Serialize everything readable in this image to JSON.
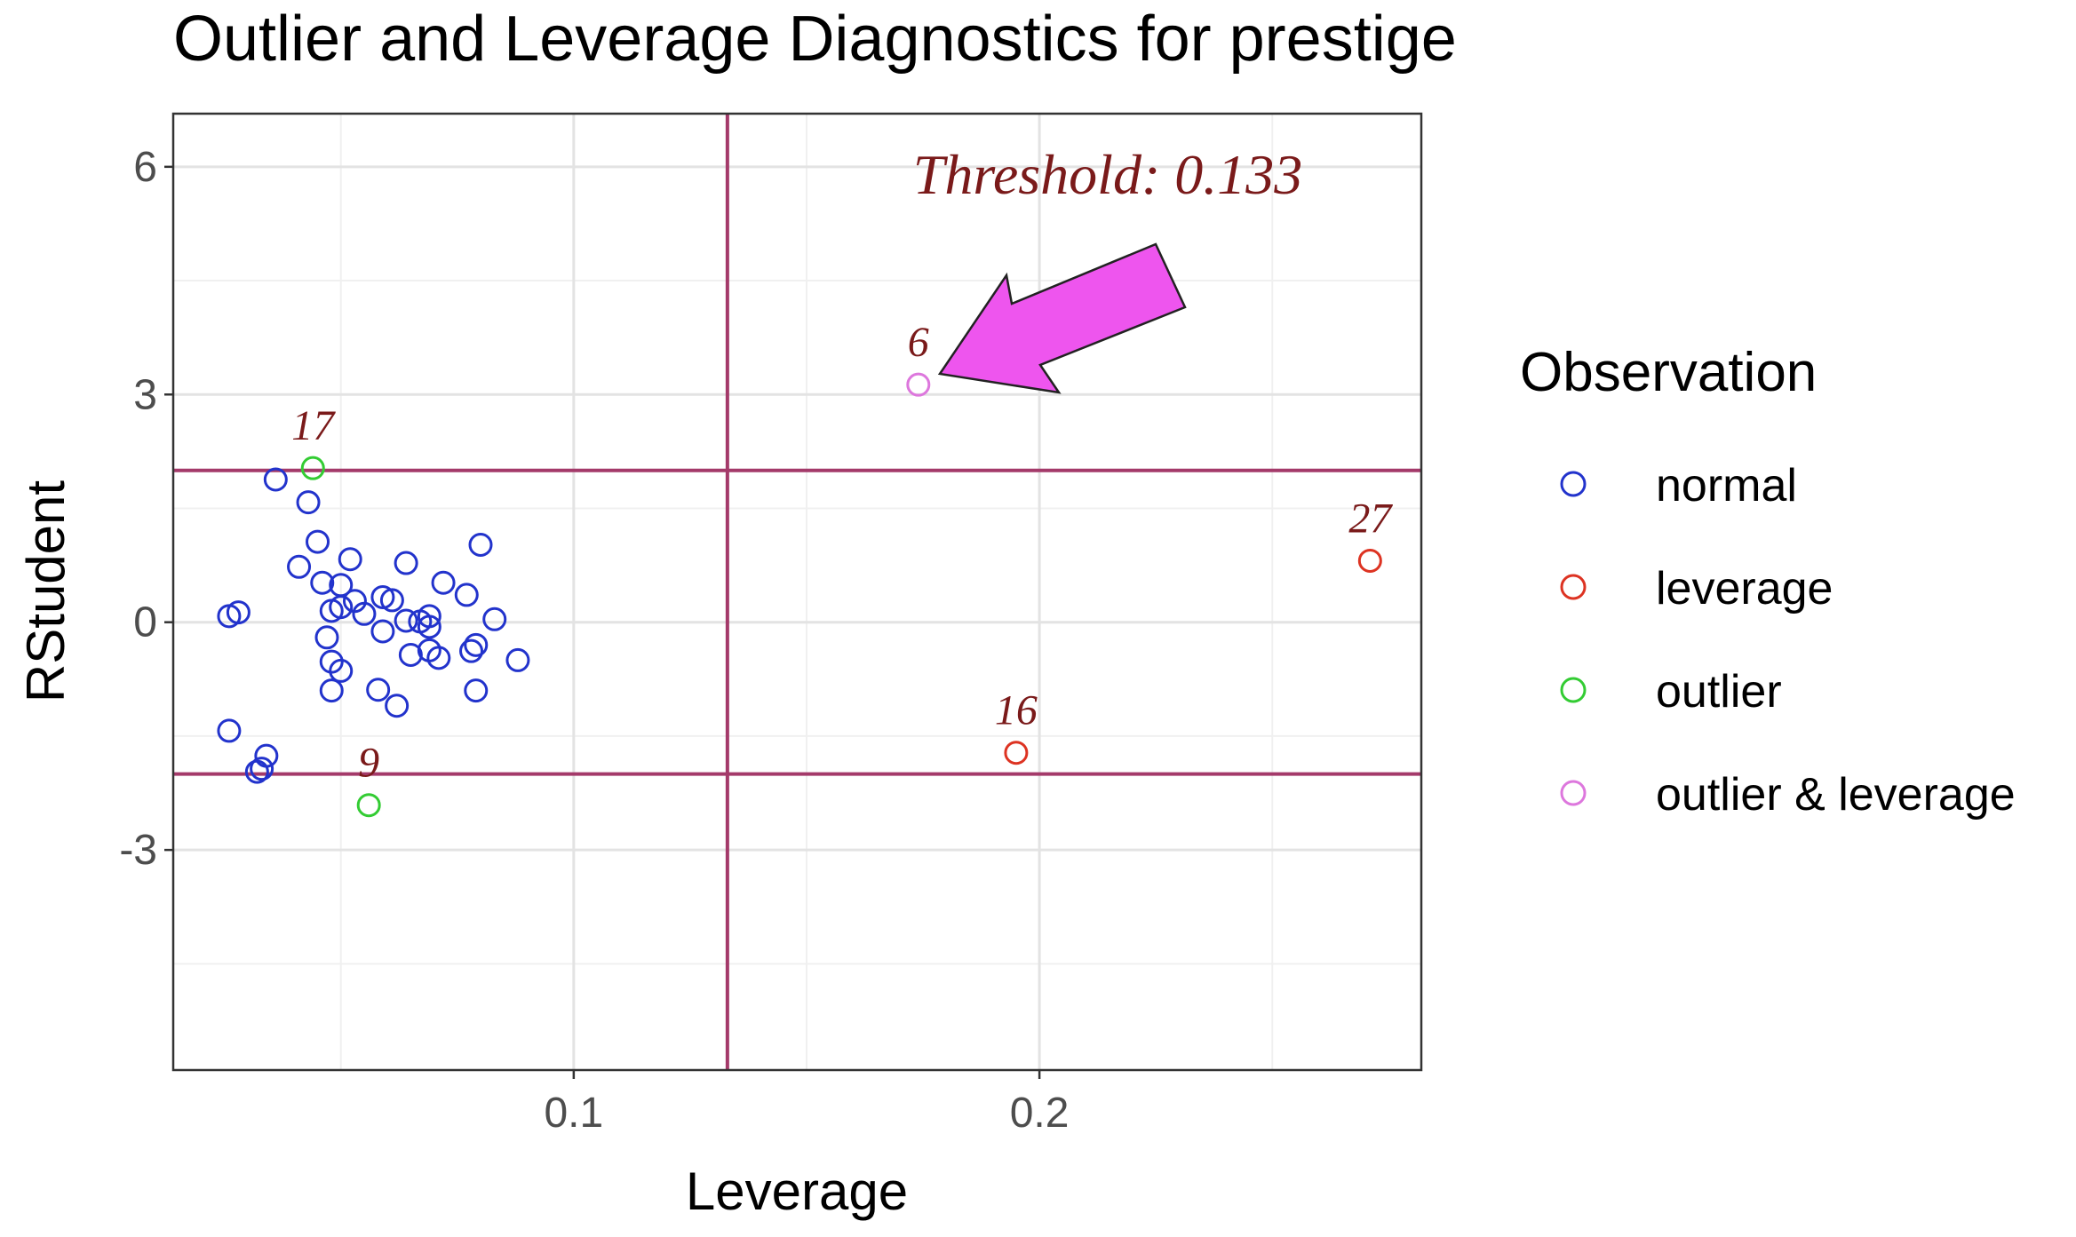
{
  "chart_data": {
    "type": "scatter",
    "title": "Outlier and Leverage Diagnostics for prestige",
    "xlabel": "Leverage",
    "ylabel": "RStudent",
    "xlim": [
      0.014,
      0.282
    ],
    "ylim": [
      -5.9,
      6.7
    ],
    "x_ticks": [
      0.1,
      0.2
    ],
    "x_tick_labels": [
      "0.1",
      "0.2"
    ],
    "y_ticks": [
      -3,
      0,
      3,
      6
    ],
    "y_tick_labels": [
      "-3",
      "0",
      "3",
      "6"
    ],
    "grid": true,
    "threshold_x": 0.133,
    "threshold_y": [
      -2,
      2
    ],
    "threshold_label": "Threshold: 0.133",
    "legend": {
      "title": "Observation",
      "position": "right",
      "entries": [
        {
          "label": "normal",
          "color": "#2233cc"
        },
        {
          "label": "leverage",
          "color": "#dd3322"
        },
        {
          "label": "outlier",
          "color": "#33cc33"
        },
        {
          "label": "outlier & leverage",
          "color": "#dd77dd"
        }
      ]
    },
    "colors": {
      "normal": "#2233cc",
      "leverage": "#dd3322",
      "outlier": "#33cc33",
      "outlier & leverage": "#dd77dd",
      "threshold_line": "#a43a6a",
      "annotation": "#7a1a1a",
      "arrow": "#ee55ee"
    },
    "series": [
      {
        "name": "normal",
        "points": [
          [
            0.036,
            1.88
          ],
          [
            0.043,
            1.58
          ],
          [
            0.045,
            1.06
          ],
          [
            0.041,
            0.73
          ],
          [
            0.046,
            0.52
          ],
          [
            0.05,
            0.49
          ],
          [
            0.052,
            0.83
          ],
          [
            0.05,
            0.2
          ],
          [
            0.053,
            0.28
          ],
          [
            0.048,
            0.15
          ],
          [
            0.055,
            0.11
          ],
          [
            0.059,
            0.33
          ],
          [
            0.061,
            0.29
          ],
          [
            0.064,
            0.78
          ],
          [
            0.072,
            0.52
          ],
          [
            0.077,
            0.36
          ],
          [
            0.08,
            1.02
          ],
          [
            0.064,
            0.02
          ],
          [
            0.067,
            0.01
          ],
          [
            0.069,
            0.08
          ],
          [
            0.069,
            -0.06
          ],
          [
            0.059,
            -0.12
          ],
          [
            0.083,
            0.04
          ],
          [
            0.047,
            -0.2
          ],
          [
            0.048,
            -0.52
          ],
          [
            0.05,
            -0.64
          ],
          [
            0.065,
            -0.43
          ],
          [
            0.069,
            -0.37
          ],
          [
            0.071,
            -0.47
          ],
          [
            0.078,
            -0.38
          ],
          [
            0.079,
            -0.3
          ],
          [
            0.088,
            -0.5
          ],
          [
            0.048,
            -0.9
          ],
          [
            0.058,
            -0.89
          ],
          [
            0.062,
            -1.1
          ],
          [
            0.079,
            -0.9
          ],
          [
            0.026,
            0.08
          ],
          [
            0.028,
            0.13
          ],
          [
            0.026,
            -1.43
          ],
          [
            0.034,
            -1.76
          ],
          [
            0.033,
            -1.93
          ],
          [
            0.032,
            -1.97
          ]
        ]
      },
      {
        "name": "leverage",
        "points": [
          [
            0.195,
            -1.72
          ],
          [
            0.271,
            0.81
          ]
        ]
      },
      {
        "name": "outlier",
        "points": [
          [
            0.044,
            2.03
          ],
          [
            0.056,
            -2.41
          ]
        ]
      },
      {
        "name": "outlier & leverage",
        "points": [
          [
            0.174,
            3.13
          ]
        ]
      }
    ],
    "point_labels": [
      {
        "text": "17",
        "x": 0.044,
        "y": 2.03
      },
      {
        "text": "9",
        "x": 0.056,
        "y": -2.41
      },
      {
        "text": "6",
        "x": 0.174,
        "y": 3.13
      },
      {
        "text": "16",
        "x": 0.195,
        "y": -1.72
      },
      {
        "text": "27",
        "x": 0.271,
        "y": 0.81
      }
    ]
  }
}
